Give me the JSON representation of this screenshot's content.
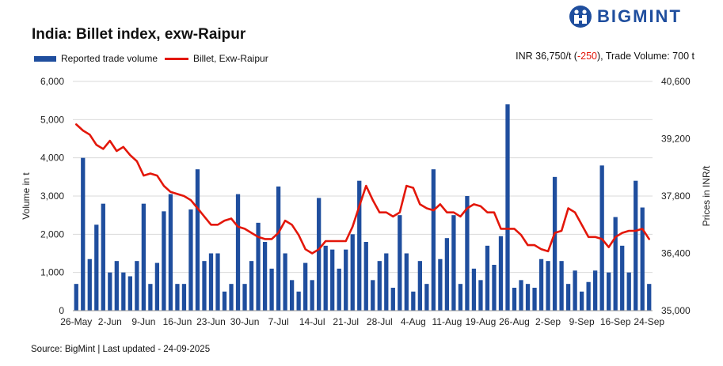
{
  "header": {
    "title": "India: Billet index, exw-Raipur",
    "brand": "BIGMINT"
  },
  "legend": {
    "volume": "Reported trade volume",
    "price": "Billet, Exw-Raipur"
  },
  "summary": {
    "prefix": "INR 36,750/t (",
    "change": "-250",
    "suffix": "), Trade Volume: 700 t"
  },
  "footer": {
    "source": "Source: BigMint | Last updated - 24-09-2025"
  },
  "colors": {
    "bar": "#1f4e9e",
    "line": "#e3170a",
    "grid": "#d9d9d9",
    "brand": "#1f4e9e"
  },
  "chart_data": {
    "type": "bar+line",
    "x_tick_labels": [
      "26-May",
      "2-Jun",
      "9-Jun",
      "16-Jun",
      "23-Jun",
      "30-Jun",
      "7-Jul",
      "14-Jul",
      "21-Jul",
      "28-Jul",
      "4-Aug",
      "11-Aug",
      "19-Aug",
      "26-Aug",
      "2-Sep",
      "9-Sep",
      "16-Sep",
      "24-Sep"
    ],
    "ylabel_left": "Volume in t",
    "ylabel_right": "Prices in INR/t",
    "ylim_left": [
      0,
      6000
    ],
    "yticks_left": [
      0,
      1000,
      2000,
      3000,
      4000,
      5000,
      6000
    ],
    "ytick_labels_left": [
      "0",
      "1,000",
      "2,000",
      "3,000",
      "4,000",
      "5,000",
      "6,000"
    ],
    "ylim_right": [
      35000,
      40600
    ],
    "yticks_right": [
      35000,
      36400,
      37800,
      39200,
      40600
    ],
    "ytick_labels_right": [
      "35,000",
      "36,400",
      "37,800",
      "39,200",
      "40,600"
    ],
    "grid": true,
    "legend_position": "top-left",
    "series": [
      {
        "name": "Reported trade volume",
        "kind": "bar",
        "axis": "left",
        "values": [
          700,
          4000,
          1350,
          2250,
          2800,
          1000,
          1300,
          1000,
          900,
          1300,
          2800,
          700,
          1250,
          2600,
          3050,
          700,
          700,
          2650,
          3700,
          1300,
          1500,
          1500,
          500,
          700,
          3050,
          700,
          1300,
          2300,
          1800,
          1100,
          3250,
          1500,
          800,
          500,
          1250,
          800,
          2950,
          1700,
          1600,
          1100,
          1600,
          2000,
          3400,
          1800,
          800,
          1300,
          1500,
          600,
          2500,
          1500,
          500,
          1300,
          700,
          3700,
          1350,
          1900,
          2500,
          700,
          3000,
          1100,
          800,
          1700,
          1200,
          1950,
          5400,
          600,
          800,
          700,
          600,
          1350,
          1300,
          3500,
          1300,
          700,
          1050,
          500,
          750,
          1050,
          3800,
          1000,
          2450,
          1700,
          1000,
          3400,
          2700,
          700
        ]
      },
      {
        "name": "Billet, Exw-Raipur",
        "kind": "line",
        "axis": "right",
        "values": [
          39550,
          39400,
          39300,
          39050,
          38950,
          39150,
          38900,
          39000,
          38800,
          38650,
          38300,
          38350,
          38300,
          38050,
          37900,
          37850,
          37800,
          37700,
          37500,
          37300,
          37100,
          37100,
          37200,
          37250,
          37050,
          37000,
          36900,
          36800,
          36750,
          36750,
          36900,
          37200,
          37100,
          36850,
          36500,
          36400,
          36500,
          36700,
          36700,
          36700,
          36700,
          37050,
          37550,
          38050,
          37700,
          37400,
          37400,
          37300,
          37400,
          38050,
          38000,
          37600,
          37500,
          37450,
          37600,
          37400,
          37400,
          37300,
          37500,
          37600,
          37550,
          37400,
          37400,
          37000,
          37000,
          37000,
          36850,
          36600,
          36600,
          36500,
          36450,
          36900,
          36950,
          37500,
          37400,
          37100,
          36800,
          36800,
          36750,
          36550,
          36800,
          36900,
          36950,
          36950,
          37000,
          36750
        ]
      }
    ]
  }
}
